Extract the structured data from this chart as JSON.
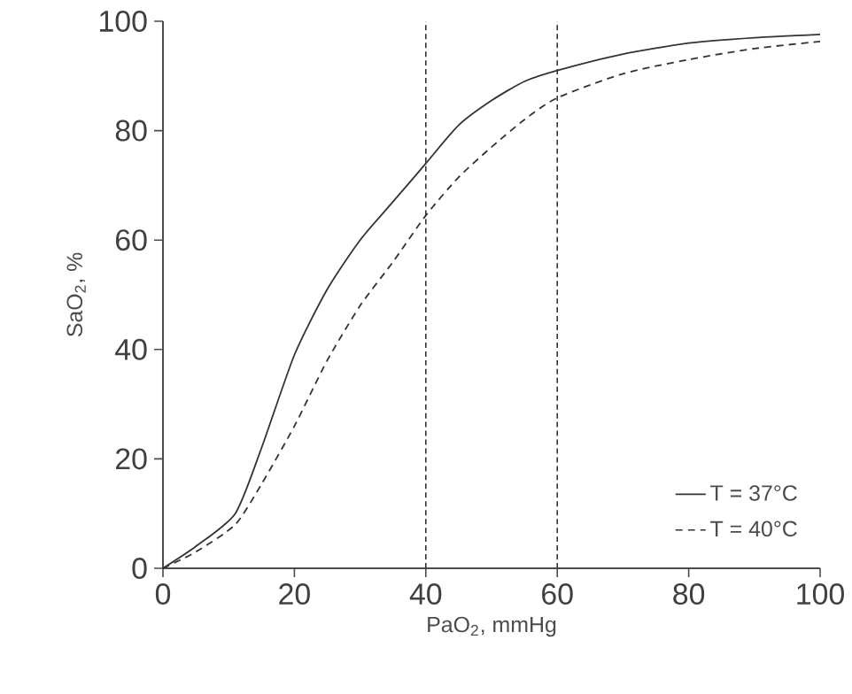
{
  "chart_data": {
    "type": "line",
    "xlabel": "PaO$_{2}$, mmHg",
    "ylabel": "SaO$_{2}$, %",
    "x": [
      0,
      5,
      11,
      15,
      20,
      25,
      30,
      35,
      40,
      45,
      50,
      55,
      60,
      70,
      80,
      90,
      100
    ],
    "series": [
      {
        "name": "T = 37°C",
        "color": "#333333",
        "line_style": "solid",
        "values": [
          0,
          4,
          10,
          22,
          39,
          51,
          60,
          67,
          74,
          81,
          85.5,
          89,
          91,
          94,
          96,
          97,
          97.6
        ]
      },
      {
        "name": "T = 40°C",
        "color": "#333333",
        "line_style": "dashed",
        "values": [
          0,
          3,
          8,
          15.4,
          26,
          38,
          48,
          56,
          64.5,
          71.5,
          77,
          82,
          86,
          90.4,
          93,
          95,
          96.3
        ]
      }
    ],
    "xlim": [
      0,
      100
    ],
    "ylim": [
      0,
      100
    ],
    "xticks": [
      0,
      20,
      40,
      60,
      80,
      100
    ],
    "yticks": [
      0,
      20,
      40,
      60,
      80,
      100
    ],
    "ref_lines": [
      {
        "axis": "x",
        "value": 40,
        "line_style": "dashed",
        "color": "#333333"
      },
      {
        "axis": "x",
        "value": 60,
        "line_style": "dashed",
        "color": "#333333"
      }
    ],
    "legend": "bottom right",
    "grid": false,
    "marker": "none"
  }
}
